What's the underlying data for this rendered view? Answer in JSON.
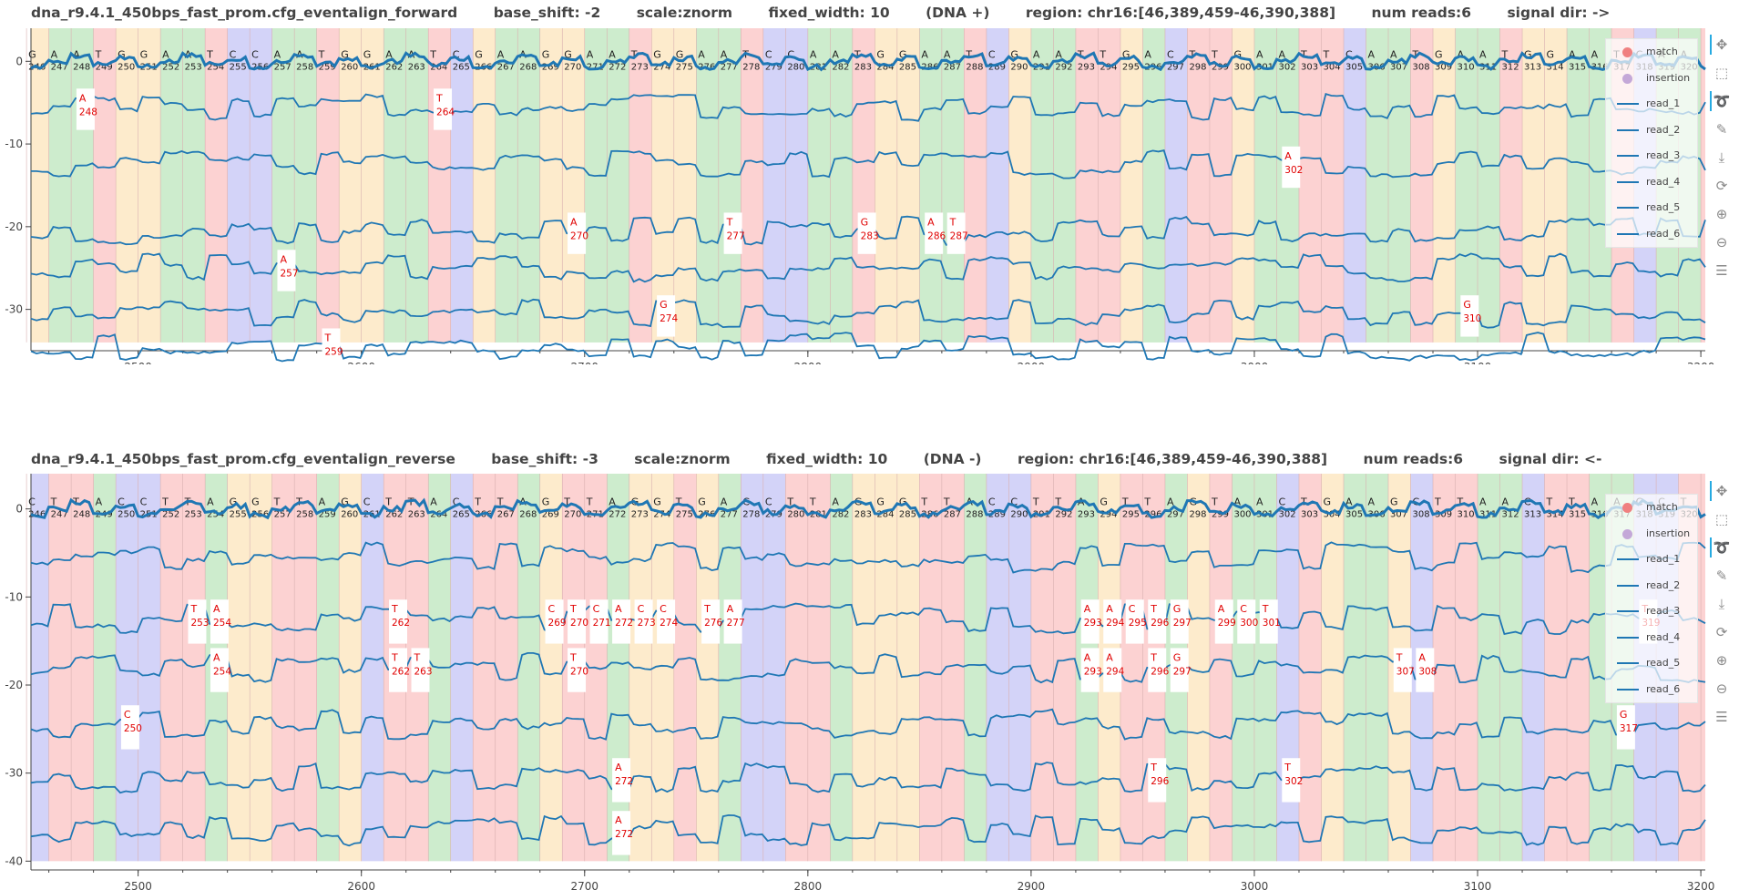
{
  "panels": [
    {
      "title": {
        "name": "dna_r9.4.1_450bps_fast_prom.cfg_eventalign_forward",
        "base_shift": "base_shift: -2",
        "scale": "scale:znorm",
        "fixed_width": "fixed_width: 10",
        "strand": "(DNA +)",
        "region": "region: chr16:[46,389,459-46,390,388]",
        "num_reads": "num reads:6",
        "signal_dir": "signal dir: ->"
      },
      "seq": "GAATGGAATCCAATGGAATCGAAGGAATGGAATCCAATGGAATCGAATTGACTTGAATTCAATGAATGGAATCAATGGAATCATTTGACTTGAATTAATCGAATCAATGGAATCAATGGA",
      "first_pos": 246,
      "reads_offsets": [
        -5.5,
        -12.5,
        -20.5,
        -25,
        -30.5,
        -34.5
      ],
      "labels": [
        {
          "x": 2474,
          "row": 0,
          "base": "A",
          "pos": "248"
        },
        {
          "x": 2634,
          "row": 0,
          "base": "T",
          "pos": "264"
        },
        {
          "x": 3014,
          "row": 1,
          "base": "A",
          "pos": "302"
        },
        {
          "x": 2694,
          "row": 2,
          "base": "A",
          "pos": "270"
        },
        {
          "x": 2764,
          "row": 2,
          "base": "T",
          "pos": "277"
        },
        {
          "x": 2824,
          "row": 2,
          "base": "G",
          "pos": "283"
        },
        {
          "x": 2854,
          "row": 2,
          "base": "A",
          "pos": "286"
        },
        {
          "x": 2864,
          "row": 2,
          "base": "T",
          "pos": "287"
        },
        {
          "x": 2564,
          "row": 3,
          "base": "A",
          "pos": "257"
        },
        {
          "x": 2734,
          "row": 4,
          "base": "G",
          "pos": "274"
        },
        {
          "x": 3094,
          "row": 4,
          "base": "G",
          "pos": "310"
        },
        {
          "x": 2584,
          "row": 5,
          "base": "T",
          "pos": "259"
        }
      ],
      "ylim": [
        -35,
        4
      ],
      "yticks": [
        0,
        -10,
        -20,
        -30
      ]
    },
    {
      "title": {
        "name": "dna_r9.4.1_450bps_fast_prom.cfg_eventalign_reverse",
        "base_shift": "base_shift: -3",
        "scale": "scale:znorm",
        "fixed_width": "fixed_width: 10",
        "strand": "(DNA -)",
        "region": "region: chr16:[46,389,459-46,390,388]",
        "num_reads": "num reads:6",
        "signal_dir": "signal dir: <-"
      },
      "seq": "CTTACCTTAGGTTAGCTTACTTAGTTAGGTGACCTTAGGGTTACCTTAGTTAGTAACTGAAGCTTAACTTAACCTTAGTTAGA",
      "first_pos": 246,
      "reads_offsets": [
        -5.5,
        -12.5,
        -18,
        -24.5,
        -30.5,
        -36.5
      ],
      "labels": [
        {
          "x": 2524,
          "row": 1,
          "base": "T",
          "pos": "253"
        },
        {
          "x": 2534,
          "row": 1,
          "base": "A",
          "pos": "254"
        },
        {
          "x": 2614,
          "row": 1,
          "base": "T",
          "pos": "262"
        },
        {
          "x": 2684,
          "row": 1,
          "base": "C",
          "pos": "269"
        },
        {
          "x": 2694,
          "row": 1,
          "base": "T",
          "pos": "270"
        },
        {
          "x": 2704,
          "row": 1,
          "base": "C",
          "pos": "271"
        },
        {
          "x": 2714,
          "row": 1,
          "base": "A",
          "pos": "272"
        },
        {
          "x": 2724,
          "row": 1,
          "base": "C",
          "pos": "273"
        },
        {
          "x": 2734,
          "row": 1,
          "base": "C",
          "pos": "274"
        },
        {
          "x": 2754,
          "row": 1,
          "base": "T",
          "pos": "276"
        },
        {
          "x": 2764,
          "row": 1,
          "base": "A",
          "pos": "277"
        },
        {
          "x": 2924,
          "row": 1,
          "base": "A",
          "pos": "293"
        },
        {
          "x": 2934,
          "row": 1,
          "base": "A",
          "pos": "294"
        },
        {
          "x": 2944,
          "row": 1,
          "base": "C",
          "pos": "295"
        },
        {
          "x": 2954,
          "row": 1,
          "base": "T",
          "pos": "296"
        },
        {
          "x": 2964,
          "row": 1,
          "base": "G",
          "pos": "297"
        },
        {
          "x": 2984,
          "row": 1,
          "base": "A",
          "pos": "299"
        },
        {
          "x": 2994,
          "row": 1,
          "base": "C",
          "pos": "300"
        },
        {
          "x": 3004,
          "row": 1,
          "base": "T",
          "pos": "301"
        },
        {
          "x": 3174,
          "row": 1,
          "base": "T",
          "pos": "319"
        },
        {
          "x": 2534,
          "row": 2,
          "base": "A",
          "pos": "254"
        },
        {
          "x": 2614,
          "row": 2,
          "base": "T",
          "pos": "262"
        },
        {
          "x": 2624,
          "row": 2,
          "base": "T",
          "pos": "263"
        },
        {
          "x": 2694,
          "row": 2,
          "base": "T",
          "pos": "270"
        },
        {
          "x": 2924,
          "row": 2,
          "base": "A",
          "pos": "293"
        },
        {
          "x": 2934,
          "row": 2,
          "base": "A",
          "pos": "294"
        },
        {
          "x": 2954,
          "row": 2,
          "base": "T",
          "pos": "296"
        },
        {
          "x": 2964,
          "row": 2,
          "base": "G",
          "pos": "297"
        },
        {
          "x": 3064,
          "row": 2,
          "base": "T",
          "pos": "307"
        },
        {
          "x": 3074,
          "row": 2,
          "base": "A",
          "pos": "308"
        },
        {
          "x": 2494,
          "row": 3,
          "base": "C",
          "pos": "250"
        },
        {
          "x": 3164,
          "row": 3,
          "base": "G",
          "pos": "317"
        },
        {
          "x": 2714,
          "row": 4,
          "base": "A",
          "pos": "272"
        },
        {
          "x": 2954,
          "row": 4,
          "base": "T",
          "pos": "296"
        },
        {
          "x": 3014,
          "row": 4,
          "base": "T",
          "pos": "302"
        },
        {
          "x": 2714,
          "row": 5,
          "base": "A",
          "pos": "272"
        }
      ],
      "ylim": [
        -41,
        4
      ],
      "yticks": [
        0,
        -10,
        -20,
        -30,
        -40
      ]
    }
  ],
  "legend": [
    {
      "label": "match",
      "kind": "dot",
      "color": "#f08080"
    },
    {
      "label": "insertion",
      "kind": "dot",
      "color": "#c4a8d8"
    },
    {
      "label": "read_1",
      "kind": "line"
    },
    {
      "label": "read_2",
      "kind": "line"
    },
    {
      "label": "read_3",
      "kind": "line"
    },
    {
      "label": "read_4",
      "kind": "line"
    },
    {
      "label": "read_5",
      "kind": "line"
    },
    {
      "label": "read_6",
      "kind": "line"
    }
  ],
  "tools": [
    "pan-icon",
    "box-zoom-icon",
    "lasso-icon",
    "freehand-draw-icon",
    "save-icon",
    "reset-icon",
    "zoom-in-icon",
    "zoom-out-icon",
    "hover-icon"
  ],
  "colors": {
    "A": "#cdeccd",
    "C": "#d3d3f8",
    "G": "#fdebcc",
    "T": "#fcd2d2",
    "line": "#1f77b4",
    "label": "#e00000"
  },
  "chart_data": [
    {
      "type": "line",
      "title": "dna_r9.4.1_450bps_fast_prom.cfg_eventalign_forward",
      "xlim": [
        2452,
        3202
      ],
      "xticks": [
        2500,
        2600,
        2700,
        2800,
        2900,
        3000,
        3100,
        3200
      ],
      "ylim": [
        -35,
        4
      ],
      "series": [
        {
          "name": "read_1"
        },
        {
          "name": "read_2"
        },
        {
          "name": "read_3"
        },
        {
          "name": "read_4"
        },
        {
          "name": "read_5"
        },
        {
          "name": "read_6"
        }
      ]
    },
    {
      "type": "line",
      "title": "dna_r9.4.1_450bps_fast_prom.cfg_eventalign_reverse",
      "xlim": [
        2452,
        3202
      ],
      "xticks": [
        2500,
        2600,
        2700,
        2800,
        2900,
        3000,
        3100,
        3200
      ],
      "ylim": [
        -41,
        4
      ],
      "series": [
        {
          "name": "read_1"
        },
        {
          "name": "read_2"
        },
        {
          "name": "read_3"
        },
        {
          "name": "read_4"
        },
        {
          "name": "read_5"
        },
        {
          "name": "read_6"
        }
      ]
    }
  ]
}
